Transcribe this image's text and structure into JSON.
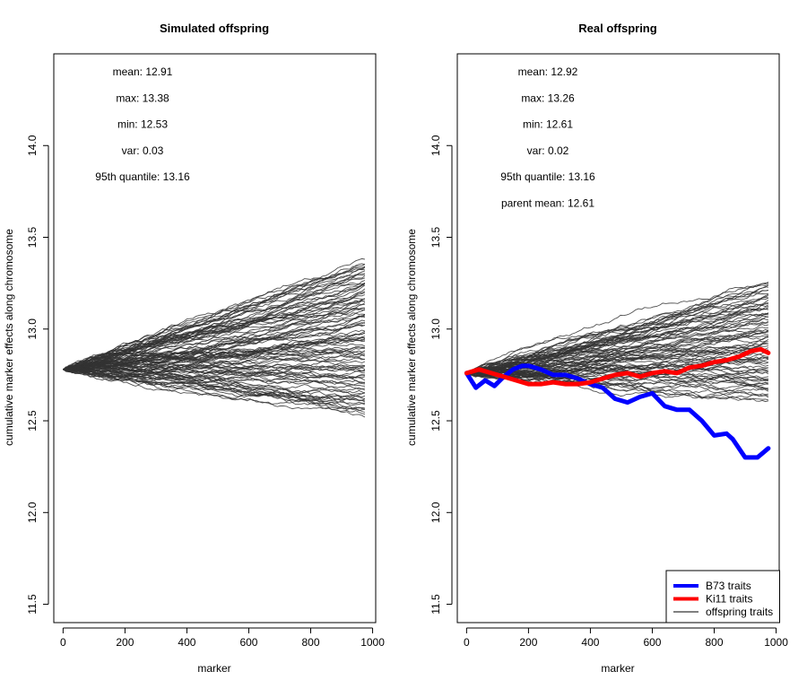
{
  "chart_data": [
    {
      "type": "line",
      "title": "Simulated offspring",
      "xlabel": "marker",
      "ylabel": "cumulative marker effects along chromosome",
      "xlim": [
        -30,
        1010
      ],
      "ylim": [
        11.4,
        14.5
      ],
      "xticks": [
        "0",
        "200",
        "400",
        "600",
        "800",
        "1000"
      ],
      "yticks": [
        "11.5",
        "12.0",
        "12.5",
        "13.0",
        "13.5",
        "14.0"
      ],
      "grid": false,
      "annotations": [
        "mean: 12.91",
        "max: 13.38",
        "min: 12.53",
        "var: 0.03",
        "95th quantile: 13.16"
      ],
      "series_summary": {
        "start_value": 12.78,
        "end_x": 975,
        "end_mean": 12.91,
        "end_max": 13.38,
        "end_min": 12.53,
        "line_count": 100,
        "color": "#333333"
      }
    },
    {
      "type": "line",
      "title": "Real offspring",
      "xlabel": "marker",
      "ylabel": "cumulative marker effects along chromosome",
      "xlim": [
        -30,
        1010
      ],
      "ylim": [
        11.4,
        14.5
      ],
      "xticks": [
        "0",
        "200",
        "400",
        "600",
        "800",
        "1000"
      ],
      "yticks": [
        "11.5",
        "12.0",
        "12.5",
        "13.0",
        "13.5",
        "14.0"
      ],
      "grid": false,
      "annotations": [
        "mean: 12.92",
        "max: 13.26",
        "min: 12.61",
        "var: 0.02",
        "95th quantile: 13.16",
        "parent mean: 12.61"
      ],
      "series_summary": {
        "start_value": 12.76,
        "end_x": 975,
        "end_mean": 12.92,
        "end_max": 13.26,
        "end_min": 12.61,
        "line_count": 80,
        "color": "#333333"
      },
      "series": [
        {
          "name": "B73 traits",
          "color": "#0000ff",
          "x": [
            0,
            30,
            60,
            90,
            120,
            150,
            180,
            200,
            240,
            280,
            320,
            360,
            400,
            440,
            480,
            520,
            560,
            600,
            640,
            680,
            720,
            760,
            800,
            840,
            860,
            900,
            940,
            975
          ],
          "y": [
            12.76,
            12.68,
            12.72,
            12.69,
            12.74,
            12.78,
            12.8,
            12.8,
            12.78,
            12.75,
            12.75,
            12.73,
            12.7,
            12.68,
            12.62,
            12.6,
            12.63,
            12.65,
            12.58,
            12.56,
            12.56,
            12.5,
            12.42,
            12.43,
            12.4,
            12.3,
            12.3,
            12.35
          ]
        },
        {
          "name": "Ki11 traits",
          "color": "#ff0000",
          "x": [
            0,
            40,
            80,
            120,
            160,
            200,
            240,
            280,
            320,
            360,
            400,
            440,
            480,
            520,
            560,
            600,
            640,
            680,
            720,
            760,
            800,
            840,
            880,
            920,
            950,
            975
          ],
          "y": [
            12.76,
            12.78,
            12.76,
            12.74,
            12.72,
            12.7,
            12.7,
            12.71,
            12.7,
            12.7,
            12.71,
            12.73,
            12.75,
            12.76,
            12.74,
            12.76,
            12.77,
            12.76,
            12.79,
            12.8,
            12.82,
            12.83,
            12.85,
            12.88,
            12.89,
            12.87
          ]
        }
      ],
      "legend": {
        "position": "bottom-right",
        "entries": [
          {
            "label": "B73 traits",
            "color": "#0000ff",
            "style": "thick"
          },
          {
            "label": "Ki11 traits",
            "color": "#ff0000",
            "style": "thick"
          },
          {
            "label": "offspring traits",
            "color": "#000000",
            "style": "thin"
          }
        ]
      }
    }
  ]
}
